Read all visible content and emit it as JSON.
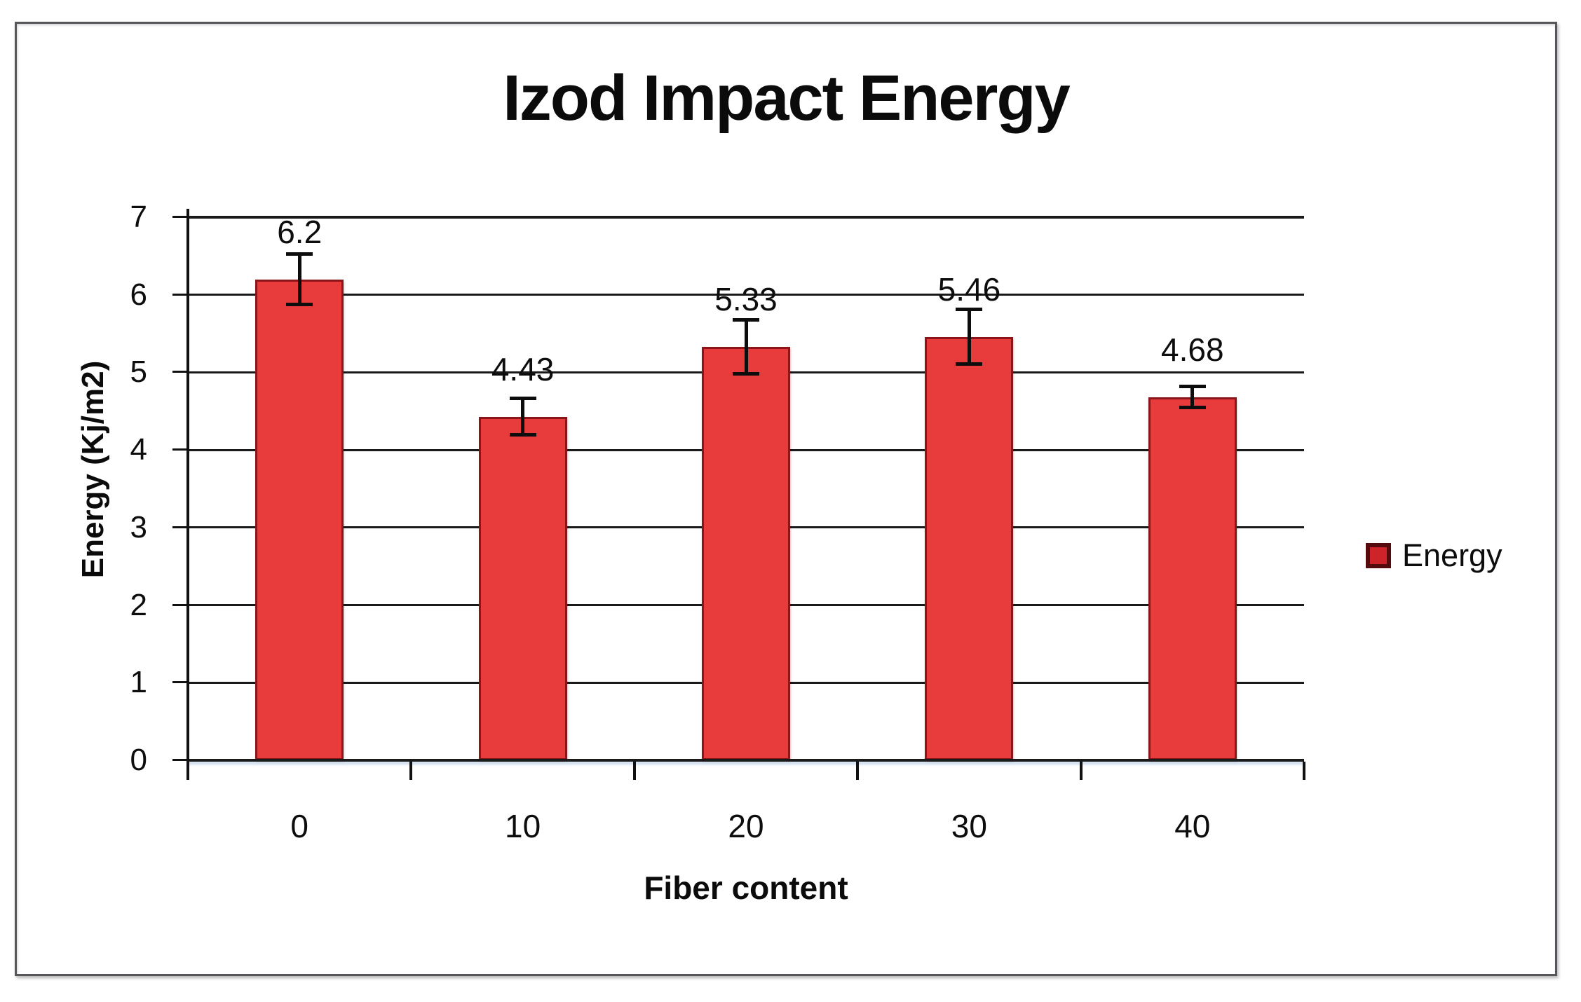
{
  "chart_data": {
    "type": "bar",
    "title": "Izod Impact Energy",
    "xlabel": "Fiber content",
    "ylabel": "Energy (Kj/m2)",
    "categories": [
      "0",
      "10",
      "20",
      "30",
      "40"
    ],
    "series": [
      {
        "name": "Energy",
        "values": [
          6.2,
          4.43,
          5.33,
          5.46,
          4.68
        ],
        "errors": [
          0.33,
          0.24,
          0.35,
          0.36,
          0.14
        ],
        "data_labels": [
          "6.2",
          "4.43",
          "5.33",
          "5.46",
          "4.68"
        ]
      }
    ],
    "ylim": [
      0,
      7
    ],
    "yticks": [
      0,
      1,
      2,
      3,
      4,
      5,
      6,
      7
    ],
    "grid": "horizontal",
    "legend_position": "right",
    "colors": {
      "bar_fill": "#E73B3C",
      "bar_border": "#8B1518",
      "legend_swatch_fill": "#CE2329",
      "legend_swatch_border": "#550B0D",
      "axis": "#111111",
      "gridline": "#1A1A1A",
      "text": "#0D0D0D",
      "frame_border": "#56575B",
      "background": "#FFFFFF"
    }
  }
}
